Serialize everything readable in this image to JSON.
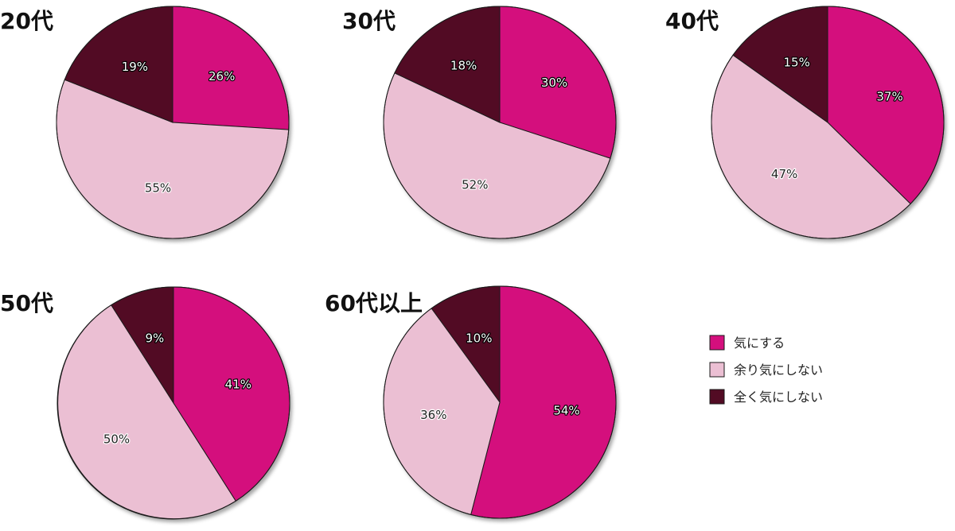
{
  "legend": [
    {
      "label": "気にする",
      "color": "#d40f7d"
    },
    {
      "label": "余り気にしない",
      "color": "#ebbfd3"
    },
    {
      "label": "全く気にしない",
      "color": "#520b24"
    }
  ],
  "chart_data": [
    {
      "type": "pie",
      "title": "20代",
      "slices": [
        {
          "category": "気にする",
          "value": 26,
          "label": "26%",
          "color": "#d40f7d"
        },
        {
          "category": "余り気にしない",
          "value": 55,
          "label": "55%",
          "color": "#ebbfd3"
        },
        {
          "category": "全く気にしない",
          "value": 19,
          "label": "19%",
          "color": "#520b24"
        }
      ]
    },
    {
      "type": "pie",
      "title": "30代",
      "slices": [
        {
          "category": "気にする",
          "value": 30,
          "label": "30%",
          "color": "#d40f7d"
        },
        {
          "category": "余り気にしない",
          "value": 52,
          "label": "52%",
          "color": "#ebbfd3"
        },
        {
          "category": "全く気にしない",
          "value": 18,
          "label": "18%",
          "color": "#520b24"
        }
      ]
    },
    {
      "type": "pie",
      "title": "40代",
      "slices": [
        {
          "category": "気にする",
          "value": 37,
          "label": "37%",
          "color": "#d40f7d"
        },
        {
          "category": "余り気にしない",
          "value": 47,
          "label": "47%",
          "color": "#ebbfd3"
        },
        {
          "category": "全く気にしない",
          "value": 15,
          "label": "15%",
          "color": "#520b24"
        }
      ]
    },
    {
      "type": "pie",
      "title": "50代",
      "slices": [
        {
          "category": "気にする",
          "value": 41,
          "label": "41%",
          "color": "#d40f7d"
        },
        {
          "category": "余り気にしない",
          "value": 50,
          "label": "50%",
          "color": "#ebbfd3"
        },
        {
          "category": "全く気にしない",
          "value": 9,
          "label": "9%",
          "color": "#520b24"
        }
      ]
    },
    {
      "type": "pie",
      "title": "60代以上",
      "slices": [
        {
          "category": "気にする",
          "value": 54,
          "label": "54%",
          "color": "#d40f7d"
        },
        {
          "category": "余り気にしない",
          "value": 36,
          "label": "36%",
          "color": "#ebbfd3"
        },
        {
          "category": "全く気にしない",
          "value": 10,
          "label": "10%",
          "color": "#520b24"
        }
      ]
    }
  ]
}
